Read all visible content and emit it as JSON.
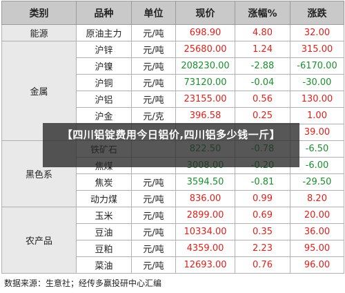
{
  "table": {
    "headers": [
      "类别",
      "品种",
      "单位",
      "现价",
      "涨幅%",
      "涨跌"
    ],
    "categories": [
      {
        "label": "能源",
        "rows": [
          {
            "name": "原油主力",
            "unit": "元/吨",
            "price": "698.90",
            "pct": "4.80",
            "chg": "32.00",
            "dir": "up"
          }
        ]
      },
      {
        "label": "金属",
        "rows": [
          {
            "name": "沪锌",
            "unit": "元/吨",
            "price": "25680.00",
            "pct": "1.24",
            "chg": "315.00",
            "dir": "up"
          },
          {
            "name": "沪镍",
            "unit": "元/吨",
            "price": "208230.00",
            "pct": "-2.88",
            "chg": "-6170.00",
            "dir": "down"
          },
          {
            "name": "沪铜",
            "unit": "元/吨",
            "price": "73120.00",
            "pct": "-0.04",
            "chg": "-30.00",
            "dir": "down"
          },
          {
            "name": "沪铝",
            "unit": "元/吨",
            "price": "23155.00",
            "pct": "0.56",
            "chg": "130.00",
            "dir": "up"
          },
          {
            "name": "沪金",
            "unit": "元/克",
            "price": "396.58",
            "pct": "0.25",
            "chg": "1.00",
            "dir": "up"
          },
          {
            "name": "",
            "unit": "",
            "price": "",
            "pct": "",
            "chg": "39.00",
            "dir": "up"
          }
        ]
      },
      {
        "label": "黑色系",
        "rows": [
          {
            "name": "铁矿石",
            "unit": "",
            "price": "822.50",
            "pct": "-0.78",
            "chg": "-6.50",
            "dir": "down"
          },
          {
            "name": "焦煤",
            "unit": "",
            "price": "3008.00",
            "pct": "-0.20",
            "chg": "-6.00",
            "dir": "down"
          },
          {
            "name": "焦炭",
            "unit": "元/吨",
            "price": "3594.50",
            "pct": "-0.81",
            "chg": "-29.50",
            "dir": "down"
          },
          {
            "name": "动力煤",
            "unit": "元/吨",
            "price": "836.00",
            "pct": "0.99",
            "chg": "8.20",
            "dir": "up"
          }
        ]
      },
      {
        "label": "农产品",
        "rows": [
          {
            "name": "玉米",
            "unit": "元/吨",
            "price": "2899.00",
            "pct": "0.69",
            "chg": "20.00",
            "dir": "up"
          },
          {
            "name": "豆油",
            "unit": "元/吨",
            "price": "10334.00",
            "pct": "0.35",
            "chg": "36.00",
            "dir": "up"
          },
          {
            "name": "豆粕",
            "unit": "元/吨",
            "price": "4359.00",
            "pct": "2.23",
            "chg": "95.00",
            "dir": "up"
          },
          {
            "name": "菜油",
            "unit": "元/吨",
            "price": "12693.00",
            "pct": "0.76",
            "chg": "96.00",
            "dir": "up"
          }
        ]
      }
    ]
  },
  "source_text": "数据来源：生意社；经传多赢投研中心汇编",
  "overlay_title": "【四川铝锭费用今日铝价,四川铝多少钱一斤】",
  "colors": {
    "up": "#e0201b",
    "down": "#1a8f2e",
    "header_bg": "#c9c9c9",
    "category_bg": "#e9e9e9",
    "overlay_bg": "#282828"
  }
}
